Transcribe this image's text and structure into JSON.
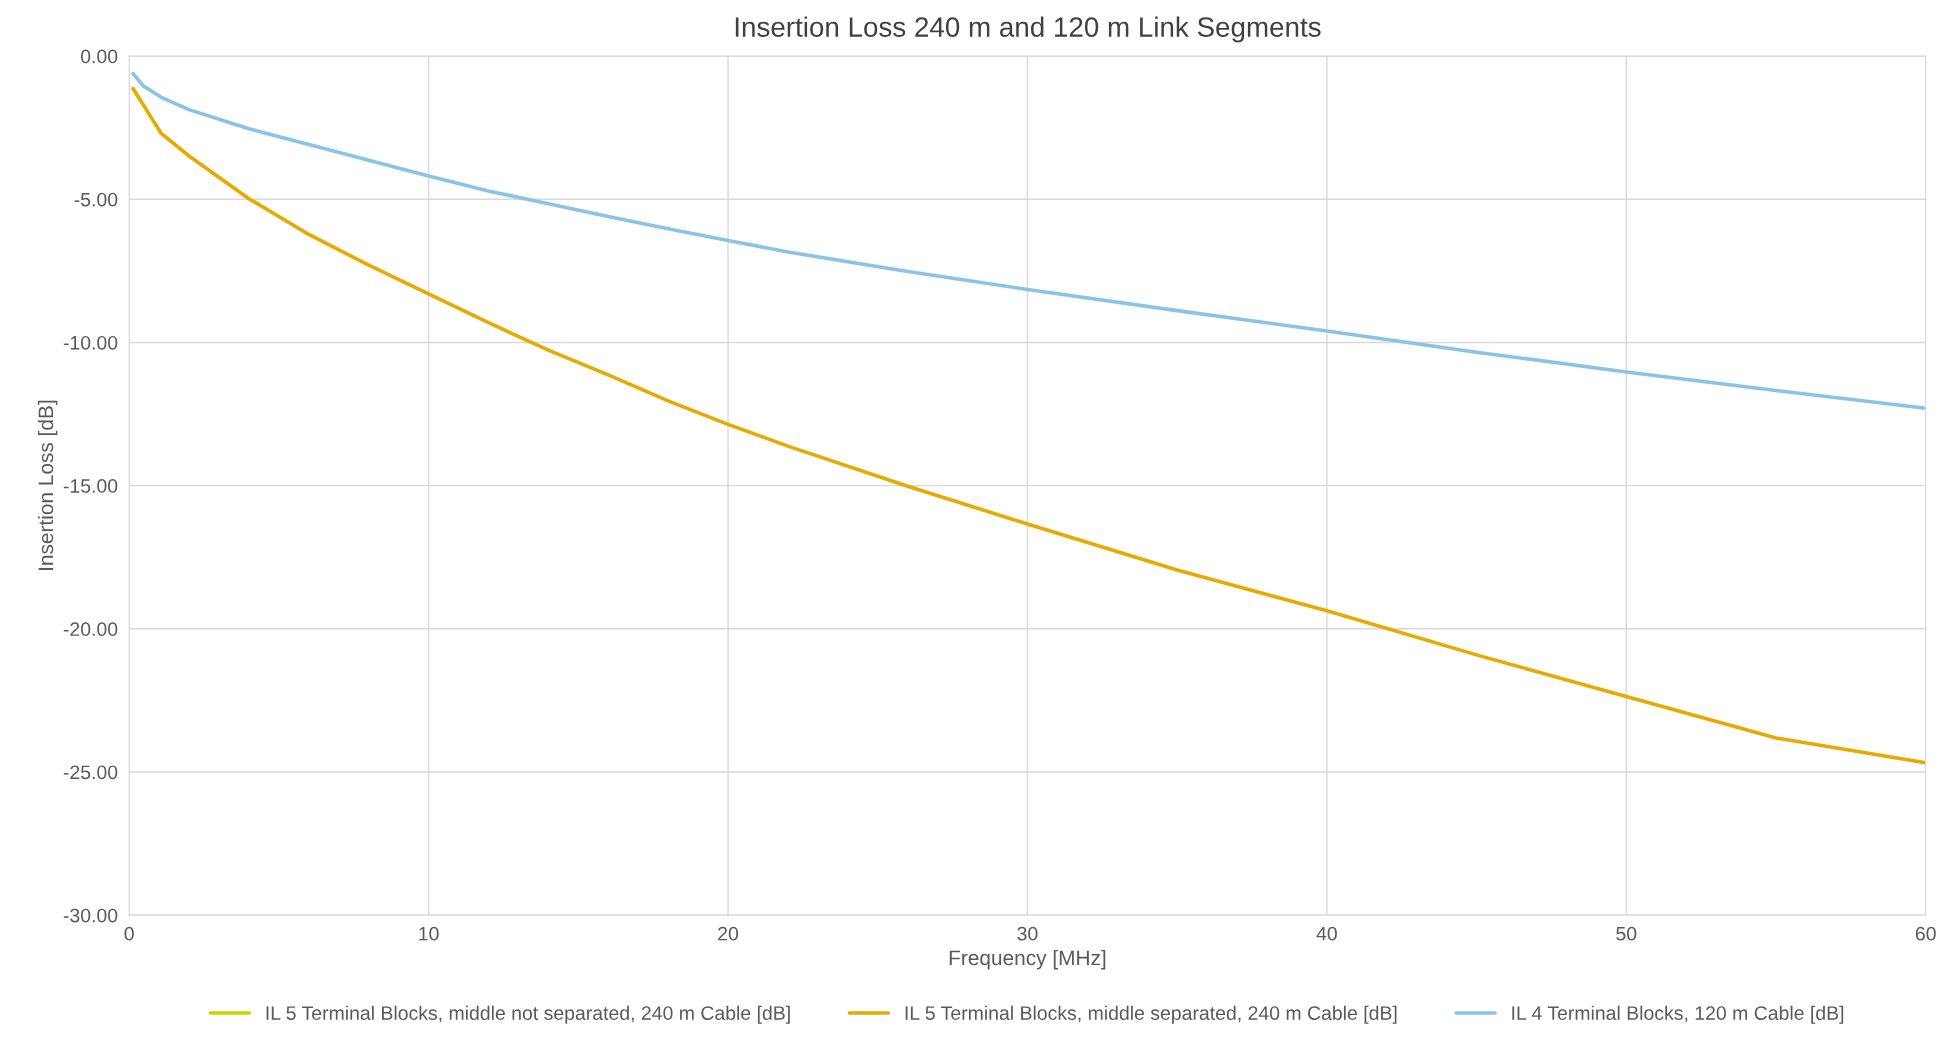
{
  "chart_data": {
    "type": "line",
    "title": "Insertion Loss 240 m and 120 m Link Segments",
    "xlabel": "Frequency [MHz]",
    "ylabel": "Insertion Loss [dB]",
    "xlim": [
      0,
      60
    ],
    "xticks": [
      0,
      10,
      20,
      30,
      40,
      50,
      60
    ],
    "ylim": [
      -30,
      0
    ],
    "yticks": [
      {
        "value": 0,
        "label": "0.00"
      },
      {
        "value": -5,
        "label": "-5.00"
      },
      {
        "value": -10,
        "label": "-10.00"
      },
      {
        "value": -15,
        "label": "-15.00"
      },
      {
        "value": -20,
        "label": "-20.00"
      },
      {
        "value": -25,
        "label": "-25.00"
      },
      {
        "value": -30,
        "label": "-30.00"
      }
    ],
    "grid": true,
    "legend": "bottom",
    "marker": "none",
    "line_style": "solid",
    "series": [
      {
        "name": "IL 5 Terminal Blocks, middle not separated, 240 m Cable [dB]",
        "color": "#c8d400"
      },
      {
        "name": "IL 5 Terminal Blocks, middle separated, 240 m Cable [dB]",
        "color": "#e8a900",
        "x": [
          0.13,
          1.07,
          2.0,
          4.0,
          6.0,
          8.0,
          10.0,
          12.0,
          14.0,
          16.0,
          18.0,
          20.0,
          22.0,
          26.0,
          30.0,
          35.0,
          40.0,
          45.0,
          50.0,
          55.0,
          60.0
        ],
        "values": [
          -1.13,
          -2.7,
          -3.49,
          -4.98,
          -6.23,
          -7.3,
          -8.3,
          -9.31,
          -10.27,
          -11.13,
          -12.04,
          -12.86,
          -13.62,
          -15.02,
          -16.34,
          -17.95,
          -19.37,
          -20.91,
          -22.36,
          -23.81,
          -24.68
        ]
      },
      {
        "name": "IL 4 Terminal Blocks, 120 m Cable [dB]",
        "color": "#89c4e8",
        "x": [
          0.13,
          0.48,
          1.07,
          2.0,
          4.0,
          6.0,
          8.0,
          10.0,
          12.0,
          14.0,
          16.0,
          18.0,
          20.0,
          22.0,
          26.0,
          30.0,
          35.0,
          40.0,
          45.0,
          50.0,
          55.0,
          60.0
        ],
        "values": [
          -0.61,
          -1.05,
          -1.44,
          -1.87,
          -2.54,
          -3.09,
          -3.64,
          -4.19,
          -4.71,
          -5.16,
          -5.6,
          -6.03,
          -6.44,
          -6.84,
          -7.52,
          -8.15,
          -8.89,
          -9.6,
          -10.34,
          -11.03,
          -11.68,
          -12.3
        ]
      }
    ]
  }
}
